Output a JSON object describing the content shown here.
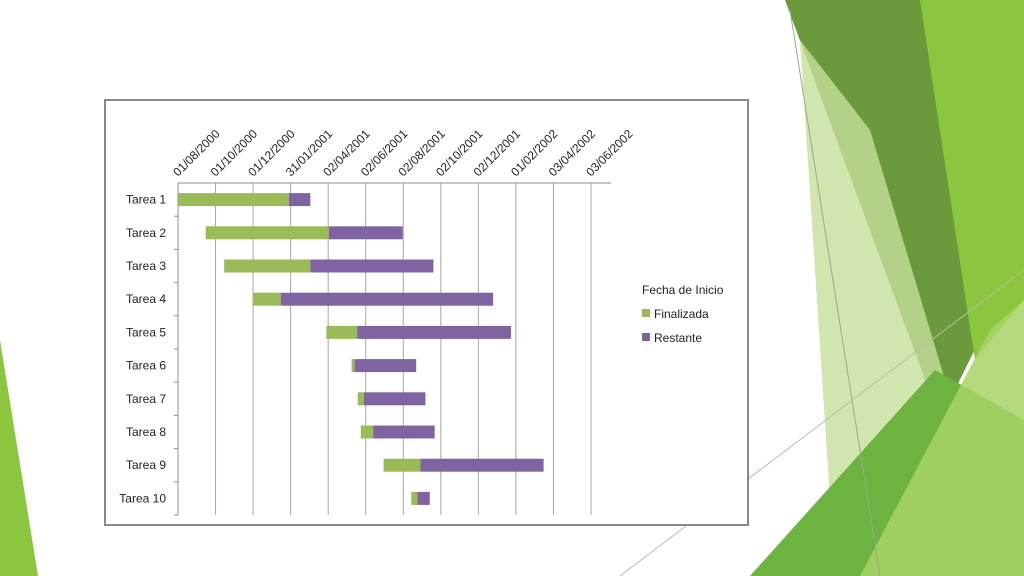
{
  "slide": {
    "accent_colors": [
      "#8cc63f",
      "#6a9a3c",
      "#c5e09a",
      "#5aa52e"
    ]
  },
  "chart_data": {
    "type": "bar",
    "subtype": "gantt-stacked-horizontal",
    "categories": [
      "Tarea 1",
      "Tarea 2",
      "Tarea 3",
      "Tarea 4",
      "Tarea 5",
      "Tarea 6",
      "Tarea 7",
      "Tarea 8",
      "Tarea 9",
      "Tarea 10"
    ],
    "x_tick_labels": [
      "01/08/2000",
      "01/10/2000",
      "01/12/2000",
      "31/01/2001",
      "02/04/2001",
      "02/06/2001",
      "02/08/2001",
      "02/10/2001",
      "02/12/2001",
      "01/02/2002",
      "03/04/2002",
      "03/06/2002"
    ],
    "xlim": [
      "01/08/2000",
      "03/06/2002"
    ],
    "grid": "vertical",
    "legend_position": "right",
    "legend": {
      "title": "Fecha de Inicio",
      "entries": [
        "Finalizada",
        "Restante"
      ]
    },
    "series": [
      {
        "name": "Fecha de Inicio",
        "color": "none",
        "values": [
          "01/08/2000",
          "15/09/2000",
          "15/10/2000",
          "01/12/2000",
          "30/03/2001",
          "10/05/2001",
          "20/05/2001",
          "25/05/2001",
          "01/07/2001",
          "15/08/2001"
        ]
      },
      {
        "name": "Finalizada",
        "color": "#9bbb59",
        "values": [
          180,
          200,
          140,
          45,
          50,
          5,
          10,
          20,
          60,
          10
        ]
      },
      {
        "name": "Restante",
        "color": "#8064a2",
        "values": [
          35,
          120,
          200,
          345,
          250,
          100,
          100,
          100,
          200,
          20
        ]
      }
    ]
  }
}
